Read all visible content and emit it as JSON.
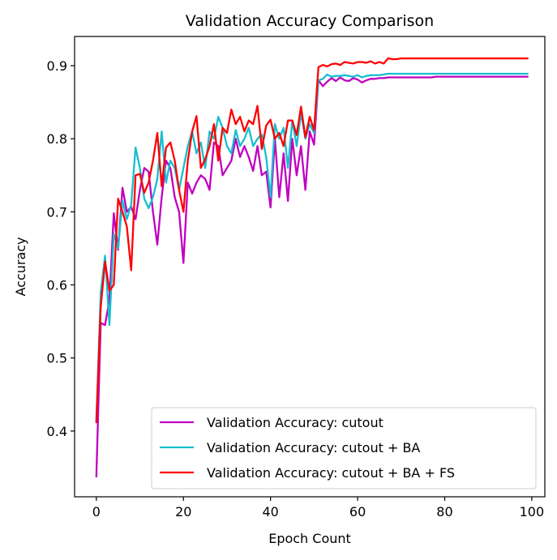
{
  "chart_data": {
    "type": "line",
    "title": "Validation Accuracy Comparison",
    "xlabel": "Epoch Count",
    "ylabel": "Accuracy",
    "xlim": [
      -5,
      103
    ],
    "ylim": [
      0.31,
      0.94
    ],
    "xticks": [
      0,
      20,
      40,
      60,
      80,
      100
    ],
    "yticks": [
      0.4,
      0.5,
      0.6,
      0.7,
      0.8,
      0.9
    ],
    "grid": false,
    "legend_position": "lower-right",
    "series": [
      {
        "name": "Validation Accuracy: cutout",
        "color": "#bf00bf",
        "values": [
          0.338,
          0.548,
          0.545,
          0.58,
          0.698,
          0.648,
          0.733,
          0.7,
          0.707,
          0.69,
          0.73,
          0.76,
          0.755,
          0.7,
          0.655,
          0.72,
          0.77,
          0.76,
          0.72,
          0.7,
          0.63,
          0.74,
          0.725,
          0.74,
          0.75,
          0.745,
          0.73,
          0.795,
          0.79,
          0.75,
          0.76,
          0.77,
          0.8,
          0.775,
          0.79,
          0.775,
          0.756,
          0.79,
          0.75,
          0.755,
          0.706,
          0.8,
          0.72,
          0.78,
          0.715,
          0.8,
          0.75,
          0.79,
          0.73,
          0.81,
          0.792,
          0.88,
          0.872,
          0.878,
          0.883,
          0.879,
          0.884,
          0.88,
          0.879,
          0.883,
          0.881,
          0.877,
          0.88,
          0.882,
          0.882,
          0.883,
          0.883,
          0.884,
          0.884,
          0.884,
          0.884,
          0.884,
          0.884,
          0.884,
          0.884,
          0.884,
          0.884,
          0.884,
          0.885,
          0.885,
          0.885,
          0.885,
          0.885,
          0.885,
          0.885,
          0.885,
          0.885,
          0.885,
          0.885,
          0.885,
          0.885,
          0.885,
          0.885,
          0.885,
          0.885,
          0.885,
          0.885,
          0.885,
          0.885,
          0.885
        ]
      },
      {
        "name": "Validation Accuracy: cutout + BA",
        "color": "#17becf",
        "values": [
          0.415,
          0.59,
          0.64,
          0.545,
          0.67,
          0.65,
          0.715,
          0.69,
          0.71,
          0.788,
          0.76,
          0.718,
          0.705,
          0.72,
          0.745,
          0.81,
          0.74,
          0.77,
          0.76,
          0.73,
          0.76,
          0.79,
          0.81,
          0.78,
          0.795,
          0.76,
          0.81,
          0.8,
          0.83,
          0.815,
          0.79,
          0.78,
          0.812,
          0.79,
          0.8,
          0.815,
          0.79,
          0.8,
          0.806,
          0.775,
          0.72,
          0.82,
          0.8,
          0.815,
          0.76,
          0.825,
          0.79,
          0.835,
          0.8,
          0.82,
          0.808,
          0.88,
          0.882,
          0.888,
          0.885,
          0.886,
          0.886,
          0.887,
          0.886,
          0.885,
          0.887,
          0.884,
          0.886,
          0.887,
          0.887,
          0.887,
          0.888,
          0.889,
          0.889,
          0.889,
          0.889,
          0.889,
          0.889,
          0.889,
          0.889,
          0.889,
          0.889,
          0.889,
          0.889,
          0.889,
          0.889,
          0.889,
          0.889,
          0.889,
          0.889,
          0.889,
          0.889,
          0.889,
          0.889,
          0.889,
          0.889,
          0.889,
          0.889,
          0.889,
          0.889,
          0.889,
          0.889,
          0.889,
          0.889,
          0.889
        ]
      },
      {
        "name": "Validation Accuracy: cutout + BA + FS",
        "color": "#ff0000",
        "values": [
          0.412,
          0.57,
          0.632,
          0.592,
          0.6,
          0.718,
          0.7,
          0.68,
          0.62,
          0.75,
          0.752,
          0.726,
          0.74,
          0.77,
          0.808,
          0.735,
          0.788,
          0.795,
          0.77,
          0.73,
          0.7,
          0.77,
          0.81,
          0.831,
          0.76,
          0.772,
          0.79,
          0.82,
          0.77,
          0.815,
          0.808,
          0.84,
          0.82,
          0.83,
          0.81,
          0.825,
          0.82,
          0.845,
          0.786,
          0.818,
          0.826,
          0.8,
          0.808,
          0.79,
          0.825,
          0.825,
          0.805,
          0.844,
          0.802,
          0.83,
          0.812,
          0.898,
          0.901,
          0.899,
          0.902,
          0.903,
          0.901,
          0.905,
          0.904,
          0.903,
          0.905,
          0.905,
          0.904,
          0.906,
          0.903,
          0.905,
          0.903,
          0.91,
          0.909,
          0.909,
          0.91,
          0.91,
          0.91,
          0.91,
          0.91,
          0.91,
          0.91,
          0.91,
          0.91,
          0.91,
          0.91,
          0.91,
          0.91,
          0.91,
          0.91,
          0.91,
          0.91,
          0.91,
          0.91,
          0.91,
          0.91,
          0.91,
          0.91,
          0.91,
          0.91,
          0.91,
          0.91,
          0.91,
          0.91,
          0.91
        ]
      }
    ]
  }
}
